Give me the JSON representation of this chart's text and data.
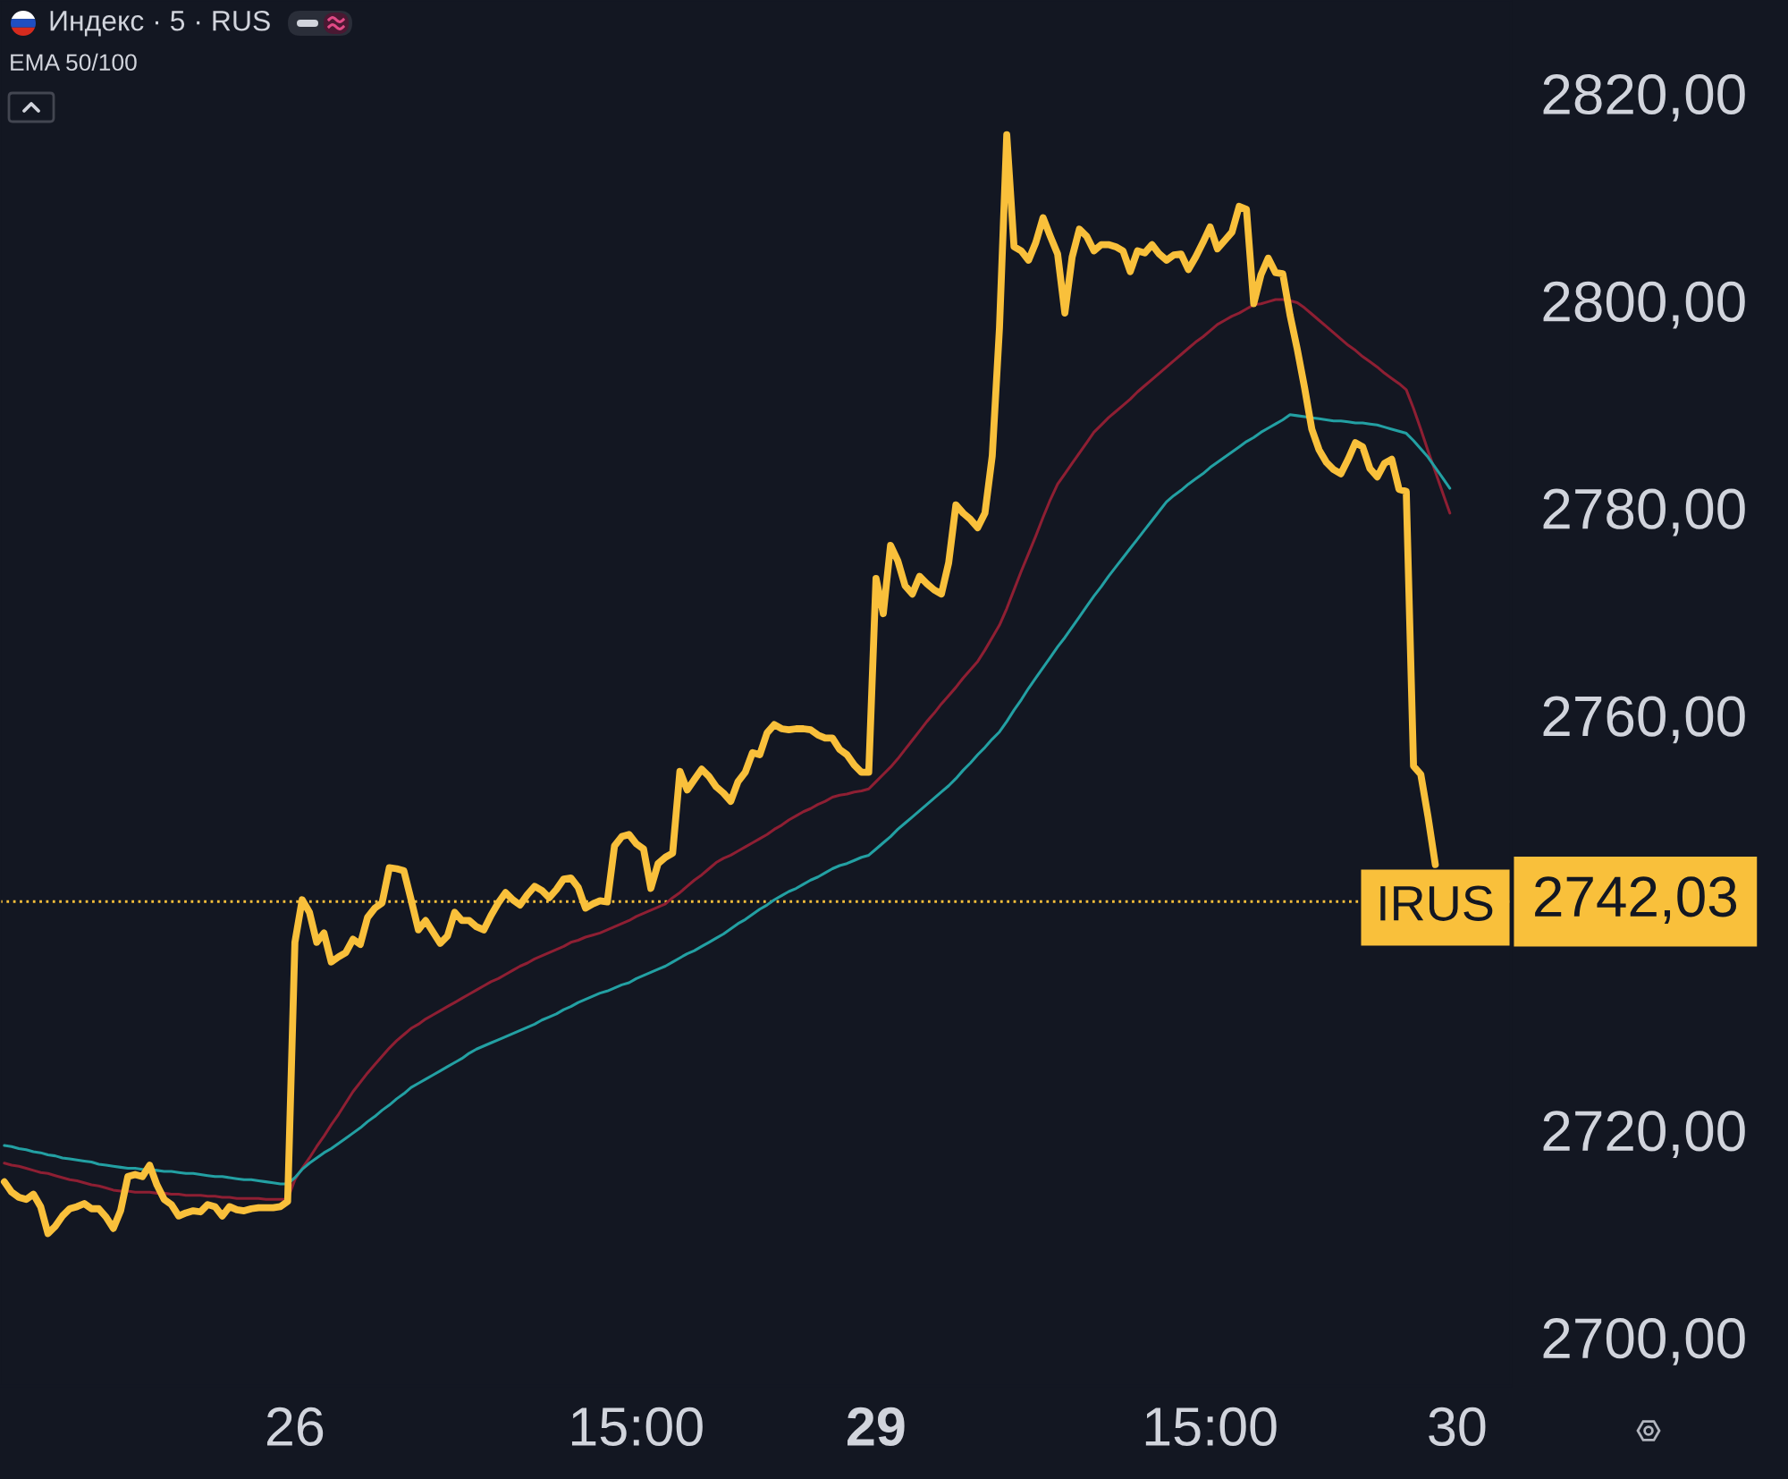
{
  "chart_data": {
    "type": "line",
    "title": "Индекс · 5 · RUS",
    "annotations": [
      "EMA 50/100"
    ],
    "categories": [
      null,
      null,
      null,
      null,
      null,
      null,
      null,
      null,
      null,
      null,
      null,
      null,
      null,
      null,
      null,
      null,
      null,
      null,
      null,
      null,
      null,
      null,
      null,
      null,
      null,
      null,
      null,
      null,
      null,
      null,
      null,
      null,
      null,
      null,
      null,
      null,
      null,
      null,
      null,
      null,
      "26",
      null,
      null,
      null,
      null,
      null,
      null,
      null,
      null,
      null,
      null,
      null,
      null,
      null,
      null,
      null,
      null,
      null,
      null,
      null,
      null,
      null,
      null,
      null,
      null,
      null,
      null,
      null,
      null,
      null,
      null,
      null,
      null,
      null,
      null,
      null,
      null,
      null,
      null,
      null,
      null,
      null,
      null,
      null,
      null,
      null,
      null,
      "15:00",
      null,
      null,
      null,
      null,
      null,
      null,
      null,
      null,
      null,
      null,
      null,
      null,
      null,
      null,
      null,
      null,
      null,
      null,
      null,
      null,
      null,
      null,
      null,
      null,
      null,
      null,
      null,
      null,
      null,
      null,
      null,
      null,
      "29",
      null,
      null,
      null,
      null,
      null,
      null,
      null,
      null,
      null,
      null,
      null,
      null,
      null,
      null,
      null,
      null,
      null,
      null,
      null,
      null,
      null,
      null,
      null,
      null,
      null,
      null,
      null,
      null,
      null,
      null,
      null,
      null,
      null,
      null,
      null,
      null,
      null,
      null,
      null,
      null,
      null,
      null,
      null,
      null,
      null,
      "15:00",
      null,
      null,
      null,
      null,
      null,
      null,
      null,
      null,
      null,
      null,
      null,
      null,
      null,
      null,
      null,
      null,
      null,
      null,
      null,
      null,
      null,
      null,
      null,
      null,
      null,
      null,
      null,
      null,
      null,
      null,
      null,
      null,
      null,
      "30"
    ],
    "series": [
      {
        "name": "IRUS",
        "color": "#f9c03b",
        "values": [
          2715.0,
          2714.0,
          2713.5,
          2713.3,
          2713.8,
          2712.6,
          2710.0,
          2710.7,
          2711.7,
          2712.4,
          2712.6,
          2712.9,
          2712.4,
          2712.4,
          2711.6,
          2710.5,
          2712.2,
          2715.5,
          2715.7,
          2715.5,
          2716.6,
          2714.7,
          2713.3,
          2712.8,
          2711.7,
          2712.0,
          2712.2,
          2712.1,
          2712.8,
          2712.6,
          2711.7,
          2712.6,
          2712.3,
          2712.2,
          2712.4,
          2712.5,
          2712.5,
          2712.5,
          2712.6,
          2713.1,
          2738.1,
          2742.2,
          2741.0,
          2738.1,
          2739.0,
          2736.2,
          2736.7,
          2737.1,
          2738.4,
          2737.9,
          2740.5,
          2741.4,
          2741.9,
          2745.3,
          2745.2,
          2745.0,
          2742.2,
          2739.3,
          2740.2,
          2739.1,
          2738.0,
          2738.7,
          2741.0,
          2740.2,
          2740.2,
          2739.6,
          2739.3,
          2740.7,
          2741.9,
          2742.9,
          2742.2,
          2741.7,
          2742.7,
          2743.5,
          2743.1,
          2742.4,
          2743.2,
          2744.2,
          2744.3,
          2743.4,
          2741.4,
          2741.8,
          2742.1,
          2742.0,
          2747.4,
          2748.3,
          2748.5,
          2747.6,
          2747.1,
          2743.3,
          2745.7,
          2746.3,
          2746.7,
          2754.6,
          2752.8,
          2753.8,
          2754.8,
          2754.1,
          2753.1,
          2752.5,
          2751.7,
          2753.6,
          2754.5,
          2756.4,
          2756.2,
          2758.3,
          2759.1,
          2758.7,
          2758.6,
          2758.7,
          2758.7,
          2758.6,
          2758.1,
          2757.8,
          2757.8,
          2756.7,
          2756.2,
          2755.2,
          2754.5,
          2754.5,
          2773.2,
          2769.8,
          2776.4,
          2774.9,
          2772.5,
          2771.7,
          2773.4,
          2772.7,
          2772.1,
          2771.7,
          2774.7,
          2780.3,
          2779.5,
          2778.9,
          2778.1,
          2779.5,
          2785.0,
          2797.4,
          2816.0,
          2805.2,
          2804.8,
          2803.9,
          2805.6,
          2808.0,
          2806.2,
          2804.5,
          2798.8,
          2804.2,
          2806.9,
          2806.2,
          2804.8,
          2805.4,
          2805.4,
          2805.2,
          2804.8,
          2802.8,
          2804.8,
          2804.6,
          2805.4,
          2804.5,
          2803.9,
          2804.4,
          2804.5,
          2803.0,
          2804.2,
          2805.6,
          2807.1,
          2805.0,
          2805.8,
          2806.6,
          2809.1,
          2808.8,
          2799.7,
          2802.5,
          2804.1,
          2802.7,
          2802.6,
          2798.6,
          2795.3,
          2791.6,
          2787.6,
          2785.6,
          2784.4,
          2783.7,
          2783.3,
          2784.7,
          2786.3,
          2785.9,
          2783.8,
          2783.0,
          2784.3,
          2784.7,
          2781.8,
          2781.6,
          2755.1,
          2754.3,
          2750.2,
          2745.6,
          null,
          null,
          null
        ]
      },
      {
        "color": "#8e1f33",
        "values": [
          2716.8,
          2716.6,
          2716.5,
          2716.3,
          2716.1,
          2715.9,
          2715.8,
          2715.6,
          2715.4,
          2715.2,
          2715.1,
          2714.9,
          2714.7,
          2714.6,
          2714.4,
          2714.2,
          2714.1,
          2714.1,
          2714.0,
          2714.0,
          2714.0,
          2713.9,
          2713.9,
          2713.8,
          2713.8,
          2713.7,
          2713.7,
          2713.7,
          2713.6,
          2713.6,
          2713.5,
          2713.5,
          2713.4,
          2713.4,
          2713.4,
          2713.4,
          2713.3,
          2713.3,
          2713.3,
          2713.3,
          2715.2,
          2716.3,
          2717.3,
          2718.4,
          2719.4,
          2720.5,
          2721.5,
          2722.6,
          2723.7,
          2724.6,
          2725.5,
          2726.3,
          2727.1,
          2727.9,
          2728.6,
          2729.2,
          2729.8,
          2730.2,
          2730.7,
          2731.1,
          2731.5,
          2731.9,
          2732.3,
          2732.7,
          2733.1,
          2733.5,
          2733.9,
          2734.3,
          2734.6,
          2735.0,
          2735.4,
          2735.8,
          2736.1,
          2736.5,
          2736.8,
          2737.1,
          2737.4,
          2737.7,
          2738.1,
          2738.3,
          2738.6,
          2738.8,
          2739.0,
          2739.3,
          2739.6,
          2739.9,
          2740.2,
          2740.6,
          2740.9,
          2741.2,
          2741.5,
          2741.8,
          2742.4,
          2742.9,
          2743.5,
          2744.1,
          2744.6,
          2745.2,
          2745.8,
          2746.2,
          2746.5,
          2746.9,
          2747.3,
          2747.7,
          2748.1,
          2748.5,
          2749.0,
          2749.4,
          2749.9,
          2750.3,
          2750.7,
          2751.0,
          2751.4,
          2751.7,
          2752.1,
          2752.3,
          2752.4,
          2752.6,
          2752.7,
          2752.9,
          2753.6,
          2754.3,
          2755.0,
          2755.8,
          2756.7,
          2757.6,
          2758.5,
          2759.4,
          2760.2,
          2761.1,
          2761.9,
          2762.7,
          2763.6,
          2764.4,
          2765.2,
          2766.3,
          2767.5,
          2768.7,
          2770.3,
          2772.1,
          2773.9,
          2775.6,
          2777.3,
          2779.1,
          2780.8,
          2782.3,
          2783.3,
          2784.3,
          2785.3,
          2786.3,
          2787.3,
          2788.0,
          2788.7,
          2789.3,
          2789.9,
          2790.5,
          2791.2,
          2791.8,
          2792.4,
          2793.0,
          2793.6,
          2794.2,
          2794.8,
          2795.4,
          2796.0,
          2796.5,
          2797.1,
          2797.7,
          2798.1,
          2798.5,
          2798.8,
          2799.2,
          2799.6,
          2799.7,
          2799.9,
          2800.1,
          2800.1,
          2800.0,
          2799.8,
          2799.3,
          2798.7,
          2798.1,
          2797.5,
          2796.9,
          2796.3,
          2795.7,
          2795.2,
          2794.6,
          2794.1,
          2793.6,
          2793.0,
          2792.5,
          2792.0,
          2791.4,
          2789.6,
          2787.6,
          2785.5,
          2783.5,
          2781.5,
          2779.5,
          null
        ]
      },
      {
        "color": "#23a0a3",
        "values": [
          2718.5,
          2718.4,
          2718.2,
          2718.1,
          2717.9,
          2717.8,
          2717.6,
          2717.5,
          2717.3,
          2717.2,
          2717.1,
          2717.0,
          2716.9,
          2716.7,
          2716.6,
          2716.5,
          2716.4,
          2716.3,
          2716.3,
          2716.2,
          2716.2,
          2716.1,
          2716.0,
          2716.0,
          2715.9,
          2715.8,
          2715.8,
          2715.7,
          2715.6,
          2715.5,
          2715.5,
          2715.4,
          2715.3,
          2715.2,
          2715.2,
          2715.1,
          2715.0,
          2714.9,
          2714.8,
          2714.8,
          2715.4,
          2716.2,
          2716.8,
          2717.3,
          2717.8,
          2718.2,
          2718.7,
          2719.2,
          2719.7,
          2720.2,
          2720.8,
          2721.3,
          2721.9,
          2722.4,
          2723.0,
          2723.5,
          2724.1,
          2724.5,
          2724.9,
          2725.3,
          2725.7,
          2726.1,
          2726.5,
          2726.9,
          2727.4,
          2727.8,
          2728.1,
          2728.4,
          2728.7,
          2729.0,
          2729.3,
          2729.6,
          2729.9,
          2730.2,
          2730.6,
          2730.9,
          2731.2,
          2731.6,
          2731.9,
          2732.3,
          2732.6,
          2732.9,
          2733.2,
          2733.4,
          2733.7,
          2734.0,
          2734.2,
          2734.6,
          2734.9,
          2735.2,
          2735.5,
          2735.8,
          2736.2,
          2736.6,
          2737.0,
          2737.3,
          2737.7,
          2738.1,
          2738.5,
          2738.9,
          2739.4,
          2739.9,
          2740.3,
          2740.8,
          2741.3,
          2741.7,
          2742.2,
          2742.6,
          2743.0,
          2743.3,
          2743.7,
          2744.1,
          2744.4,
          2744.8,
          2745.2,
          2745.5,
          2745.7,
          2746.0,
          2746.3,
          2746.5,
          2747.1,
          2747.7,
          2748.3,
          2749.0,
          2749.6,
          2750.2,
          2750.8,
          2751.4,
          2752.0,
          2752.6,
          2753.2,
          2753.9,
          2754.7,
          2755.4,
          2756.2,
          2756.9,
          2757.7,
          2758.4,
          2759.4,
          2760.5,
          2761.5,
          2762.6,
          2763.6,
          2764.6,
          2765.6,
          2766.6,
          2767.5,
          2768.5,
          2769.5,
          2770.5,
          2771.5,
          2772.4,
          2773.4,
          2774.3,
          2775.2,
          2776.1,
          2777.0,
          2777.9,
          2778.8,
          2779.7,
          2780.6,
          2781.2,
          2781.7,
          2782.3,
          2782.8,
          2783.3,
          2783.9,
          2784.4,
          2784.9,
          2785.4,
          2785.9,
          2786.4,
          2786.8,
          2787.3,
          2787.7,
          2788.1,
          2788.5,
          2789.0,
          2788.9,
          2788.8,
          2788.7,
          2788.6,
          2788.5,
          2788.4,
          2788.4,
          2788.3,
          2788.2,
          2788.2,
          2788.1,
          2788.0,
          2787.8,
          2787.6,
          2787.4,
          2787.2,
          2786.5,
          2785.7,
          2784.9,
          2783.9,
          2782.9,
          2781.9,
          null
        ]
      }
    ],
    "ylim": [
      2695.3,
      2829.0
    ],
    "yticks": [
      {
        "value": 2700,
        "label": "2700,00"
      },
      {
        "value": 2720,
        "label": "2720,00"
      },
      {
        "value": 2760,
        "label": "2760,00"
      },
      {
        "value": 2780,
        "label": "2780,00"
      },
      {
        "value": 2800,
        "label": "2800,00"
      },
      {
        "value": 2820,
        "label": "2820,00"
      }
    ],
    "ref_lines": [
      {
        "axis": "y",
        "value": 2742.03,
        "label": "2742,03",
        "color": "#f9c03b",
        "line_style": "dotted"
      }
    ]
  }
}
